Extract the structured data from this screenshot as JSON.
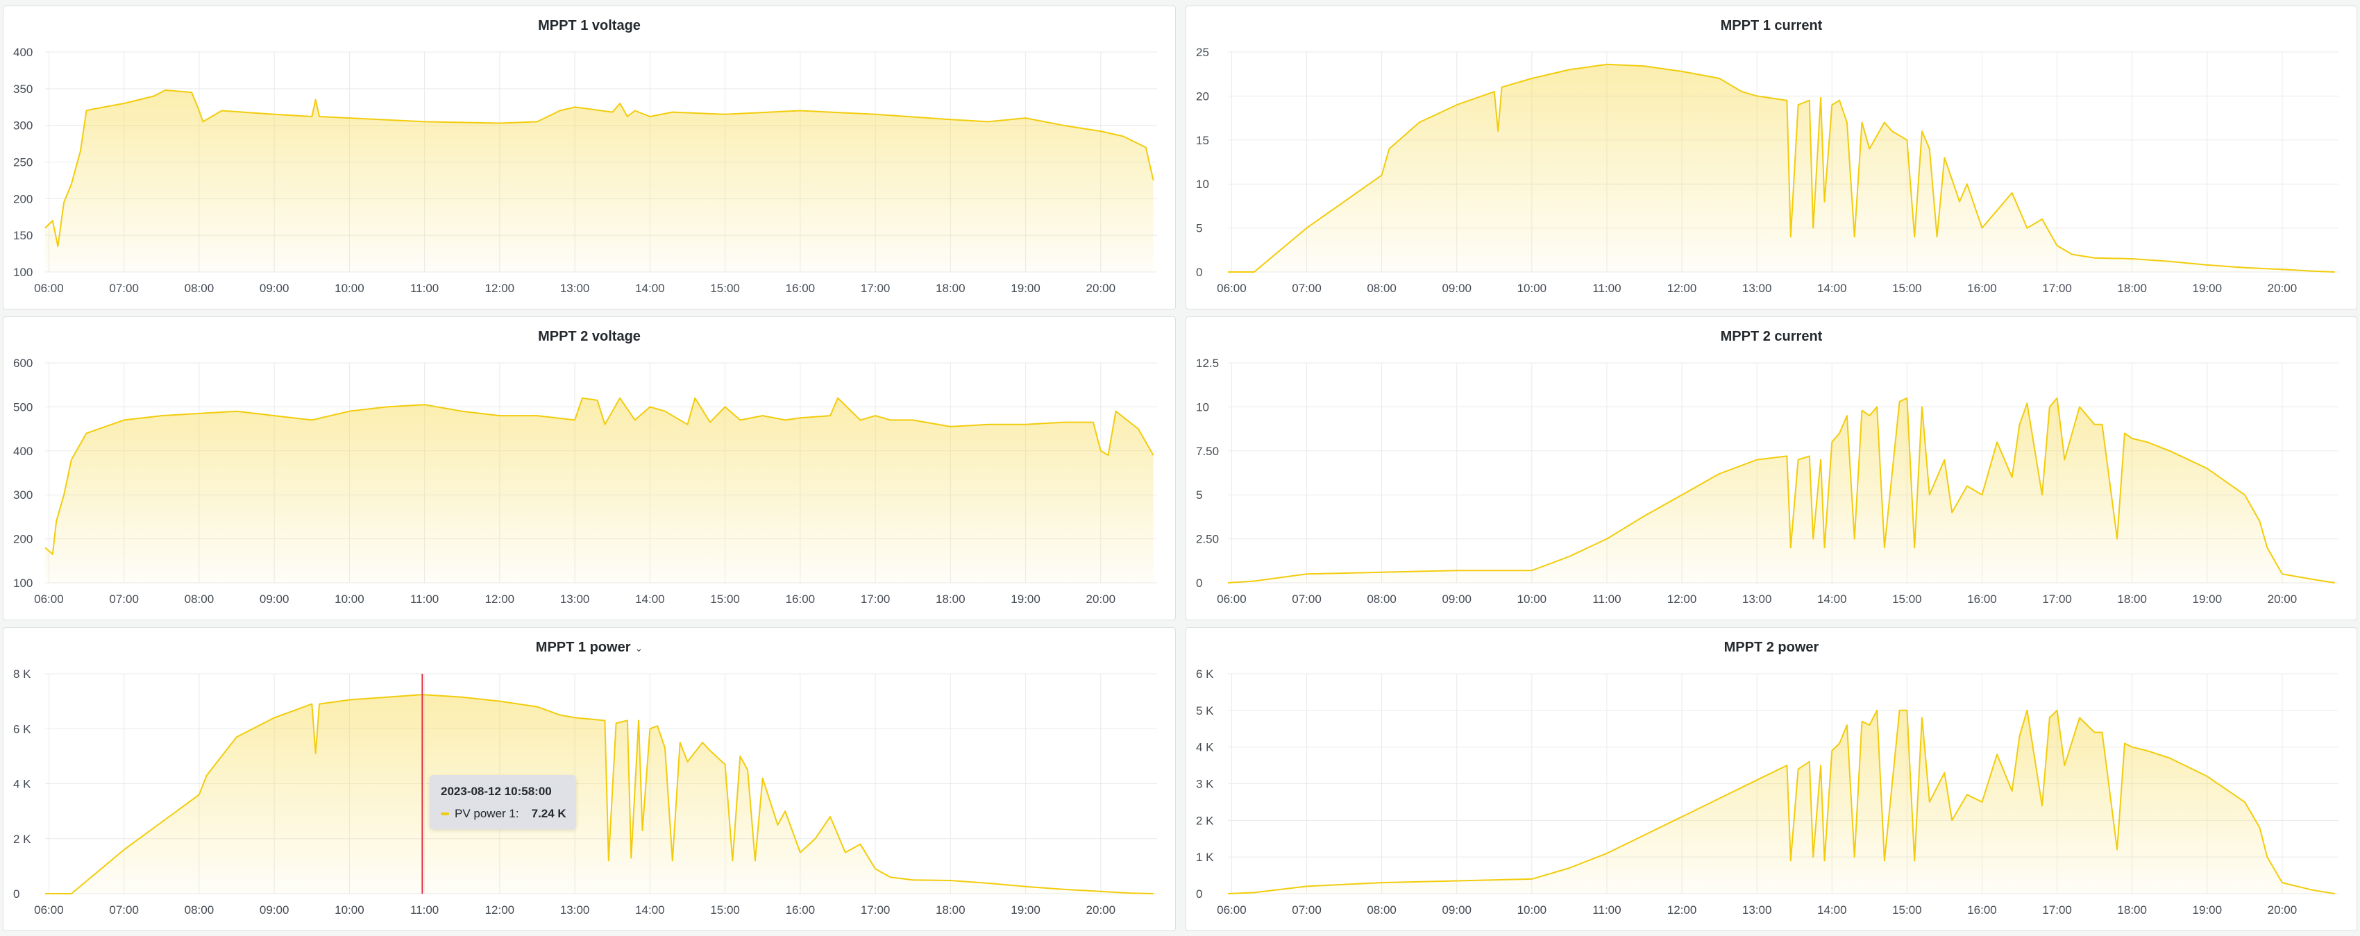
{
  "colors": {
    "series": "#f2cc0c",
    "fill_top": "#f6d94a",
    "cursor": "#e02f44"
  },
  "tooltip": {
    "time": "2023-08-12 10:58:00",
    "series": "PV power 1:",
    "value": "7.24 K"
  },
  "chart_data": [
    {
      "type": "area",
      "title": "MPPT 1 voltage",
      "x_ticks": [
        "06:00",
        "07:00",
        "08:00",
        "09:00",
        "10:00",
        "11:00",
        "12:00",
        "13:00",
        "14:00",
        "15:00",
        "16:00",
        "17:00",
        "18:00",
        "19:00",
        "20:00"
      ],
      "y_ticks": [
        "100",
        "150",
        "200",
        "250",
        "300",
        "350",
        "400"
      ],
      "ylim": [
        100,
        400
      ],
      "xlim_hours": [
        5.95,
        20.75
      ],
      "series": [
        {
          "x": [
            5.95,
            6.05,
            6.12,
            6.2,
            6.3,
            6.42,
            6.5,
            6.58,
            7.0,
            7.4,
            7.55,
            7.9,
            8.0,
            8.05,
            8.3,
            9.0,
            9.5,
            9.55,
            9.6,
            10.0,
            11.0,
            12.0,
            12.5,
            12.8,
            13.0,
            13.5,
            13.6,
            13.7,
            13.8,
            14.0,
            14.3,
            15.0,
            16.0,
            17.0,
            18.0,
            18.5,
            19.0,
            19.5,
            20.0,
            20.3,
            20.6,
            20.7
          ],
          "y": [
            160,
            170,
            135,
            195,
            220,
            265,
            320,
            322,
            330,
            340,
            348,
            345,
            320,
            305,
            320,
            315,
            312,
            335,
            312,
            310,
            305,
            303,
            305,
            320,
            325,
            318,
            330,
            312,
            320,
            312,
            318,
            315,
            320,
            315,
            308,
            305,
            310,
            300,
            292,
            285,
            270,
            225
          ]
        }
      ]
    },
    {
      "type": "area",
      "title": "MPPT 1 current",
      "x_ticks": [
        "06:00",
        "07:00",
        "08:00",
        "09:00",
        "10:00",
        "11:00",
        "12:00",
        "13:00",
        "14:00",
        "15:00",
        "16:00",
        "17:00",
        "18:00",
        "19:00",
        "20:00"
      ],
      "y_ticks": [
        "0",
        "5",
        "10",
        "15",
        "20",
        "25"
      ],
      "ylim": [
        0,
        25
      ],
      "xlim_hours": [
        5.95,
        20.75
      ],
      "series": [
        {
          "x": [
            5.95,
            6.3,
            7.0,
            8.0,
            8.1,
            8.5,
            9.0,
            9.5,
            9.55,
            9.6,
            10.0,
            10.5,
            11.0,
            11.5,
            12.0,
            12.5,
            12.8,
            13.0,
            13.4,
            13.45,
            13.55,
            13.7,
            13.75,
            13.85,
            13.9,
            14.0,
            14.1,
            14.2,
            14.3,
            14.4,
            14.5,
            14.7,
            14.8,
            15.0,
            15.1,
            15.2,
            15.3,
            15.4,
            15.5,
            15.7,
            15.8,
            16.0,
            16.2,
            16.4,
            16.6,
            16.8,
            17.0,
            17.2,
            17.5,
            18.0,
            18.5,
            19.0,
            19.5,
            20.0,
            20.4,
            20.7
          ],
          "y": [
            0,
            0,
            5,
            11,
            14,
            17,
            19,
            20.5,
            16,
            21,
            22,
            23,
            23.6,
            23.4,
            22.8,
            22,
            20.5,
            20,
            19.5,
            4,
            19,
            19.5,
            5,
            19.8,
            8,
            19,
            19.5,
            17,
            4,
            17,
            14,
            17,
            16,
            15,
            4,
            16,
            14,
            4,
            13,
            8,
            10,
            5,
            7,
            9,
            5,
            6,
            3,
            2,
            1.6,
            1.5,
            1.2,
            0.8,
            0.5,
            0.3,
            0.1,
            0
          ]
        }
      ]
    },
    {
      "type": "area",
      "title": "MPPT 2 voltage",
      "x_ticks": [
        "06:00",
        "07:00",
        "08:00",
        "09:00",
        "10:00",
        "11:00",
        "12:00",
        "13:00",
        "14:00",
        "15:00",
        "16:00",
        "17:00",
        "18:00",
        "19:00",
        "20:00"
      ],
      "y_ticks": [
        "100",
        "200",
        "300",
        "400",
        "500",
        "600"
      ],
      "ylim": [
        100,
        600
      ],
      "xlim_hours": [
        5.95,
        20.75
      ],
      "series": [
        {
          "x": [
            5.95,
            6.05,
            6.1,
            6.2,
            6.3,
            6.5,
            7.0,
            7.5,
            8.0,
            8.5,
            9.0,
            9.5,
            10.0,
            10.5,
            11.0,
            11.5,
            12.0,
            12.5,
            13.0,
            13.1,
            13.3,
            13.4,
            13.6,
            13.8,
            14.0,
            14.2,
            14.5,
            14.6,
            14.8,
            15.0,
            15.2,
            15.5,
            15.8,
            16.0,
            16.4,
            16.5,
            16.8,
            17.0,
            17.2,
            17.5,
            18.0,
            18.5,
            19.0,
            19.5,
            19.9,
            20.0,
            20.1,
            20.2,
            20.5,
            20.7
          ],
          "y": [
            180,
            165,
            240,
            300,
            380,
            440,
            470,
            480,
            485,
            490,
            480,
            470,
            490,
            500,
            505,
            490,
            480,
            480,
            470,
            520,
            515,
            460,
            520,
            470,
            500,
            490,
            460,
            520,
            465,
            500,
            470,
            480,
            470,
            475,
            480,
            520,
            470,
            480,
            470,
            470,
            455,
            460,
            460,
            465,
            465,
            400,
            390,
            490,
            450,
            390
          ]
        }
      ]
    },
    {
      "type": "area",
      "title": "MPPT 2 current",
      "x_ticks": [
        "06:00",
        "07:00",
        "08:00",
        "09:00",
        "10:00",
        "11:00",
        "12:00",
        "13:00",
        "14:00",
        "15:00",
        "16:00",
        "17:00",
        "18:00",
        "19:00",
        "20:00"
      ],
      "y_ticks": [
        "0",
        "2.50",
        "5",
        "7.50",
        "10",
        "12.5"
      ],
      "ylim": [
        0,
        12.5
      ],
      "xlim_hours": [
        5.95,
        20.75
      ],
      "series": [
        {
          "x": [
            5.95,
            6.3,
            7.0,
            8.0,
            9.0,
            10.0,
            10.5,
            11.0,
            11.5,
            12.0,
            12.5,
            13.0,
            13.4,
            13.45,
            13.55,
            13.7,
            13.75,
            13.85,
            13.9,
            14.0,
            14.1,
            14.2,
            14.3,
            14.4,
            14.5,
            14.6,
            14.7,
            14.9,
            15.0,
            15.1,
            15.2,
            15.3,
            15.5,
            15.6,
            15.8,
            16.0,
            16.2,
            16.4,
            16.5,
            16.6,
            16.8,
            16.9,
            17.0,
            17.1,
            17.3,
            17.5,
            17.6,
            17.8,
            17.9,
            18.0,
            18.2,
            18.5,
            19.0,
            19.5,
            19.7,
            19.8,
            20.0,
            20.4,
            20.7
          ],
          "y": [
            0,
            0.1,
            0.5,
            0.6,
            0.7,
            0.7,
            1.5,
            2.5,
            3.8,
            5,
            6.2,
            7,
            7.2,
            2,
            7,
            7.2,
            2.5,
            7,
            2,
            8,
            8.5,
            9.5,
            2.5,
            9.8,
            9.5,
            10,
            2,
            10.3,
            10.5,
            2,
            10,
            5,
            7,
            4,
            5.5,
            5,
            8,
            6,
            9,
            10.2,
            5,
            10,
            10.5,
            7,
            10,
            9,
            9,
            2.5,
            8.5,
            8.2,
            8,
            7.5,
            6.5,
            5,
            3.5,
            2,
            0.5,
            0.2,
            0
          ]
        }
      ]
    },
    {
      "type": "area",
      "title": "MPPT 1 power",
      "x_ticks": [
        "06:00",
        "07:00",
        "08:00",
        "09:00",
        "10:00",
        "11:00",
        "12:00",
        "13:00",
        "14:00",
        "15:00",
        "16:00",
        "17:00",
        "18:00",
        "19:00",
        "20:00"
      ],
      "y_ticks": [
        "0",
        "2 K",
        "4 K",
        "6 K",
        "8 K"
      ],
      "ylim": [
        0,
        8000
      ],
      "xlim_hours": [
        5.95,
        20.75
      ],
      "series": [
        {
          "x": [
            5.95,
            6.3,
            7.0,
            8.0,
            8.1,
            8.5,
            9.0,
            9.5,
            9.55,
            9.6,
            10.0,
            10.5,
            10.97,
            11.5,
            12.0,
            12.5,
            12.8,
            13.0,
            13.4,
            13.45,
            13.55,
            13.7,
            13.75,
            13.85,
            13.9,
            14.0,
            14.1,
            14.2,
            14.3,
            14.4,
            14.5,
            14.7,
            14.8,
            15.0,
            15.1,
            15.2,
            15.3,
            15.4,
            15.5,
            15.7,
            15.8,
            16.0,
            16.2,
            16.4,
            16.6,
            16.8,
            17.0,
            17.2,
            17.5,
            18.0,
            18.5,
            19.0,
            19.5,
            20.0,
            20.4,
            20.7
          ],
          "y": [
            0,
            0,
            1600,
            3600,
            4300,
            5700,
            6400,
            6900,
            5100,
            6900,
            7050,
            7150,
            7240,
            7150,
            7000,
            6800,
            6500,
            6400,
            6300,
            1200,
            6200,
            6300,
            1300,
            6300,
            2300,
            6000,
            6100,
            5300,
            1200,
            5500,
            4800,
            5500,
            5200,
            4700,
            1200,
            5000,
            4500,
            1200,
            4200,
            2500,
            3000,
            1500,
            2000,
            2800,
            1500,
            1800,
            900,
            600,
            500,
            480,
            380,
            260,
            160,
            80,
            20,
            0
          ]
        }
      ]
    },
    {
      "type": "area",
      "title": "MPPT 2 power",
      "x_ticks": [
        "06:00",
        "07:00",
        "08:00",
        "09:00",
        "10:00",
        "11:00",
        "12:00",
        "13:00",
        "14:00",
        "15:00",
        "16:00",
        "17:00",
        "18:00",
        "19:00",
        "20:00"
      ],
      "y_ticks": [
        "0",
        "1 K",
        "2 K",
        "3 K",
        "4 K",
        "5 K",
        "6 K"
      ],
      "ylim": [
        0,
        6000
      ],
      "xlim_hours": [
        5.95,
        20.75
      ],
      "series": [
        {
          "x": [
            5.95,
            6.3,
            7.0,
            8.0,
            9.0,
            10.0,
            10.5,
            11.0,
            11.5,
            12.0,
            12.5,
            13.0,
            13.4,
            13.45,
            13.55,
            13.7,
            13.75,
            13.85,
            13.9,
            14.0,
            14.1,
            14.2,
            14.3,
            14.4,
            14.5,
            14.6,
            14.7,
            14.9,
            15.0,
            15.1,
            15.2,
            15.3,
            15.5,
            15.6,
            15.8,
            16.0,
            16.2,
            16.4,
            16.5,
            16.6,
            16.8,
            16.9,
            17.0,
            17.1,
            17.3,
            17.5,
            17.6,
            17.8,
            17.9,
            18.0,
            18.2,
            18.5,
            19.0,
            19.5,
            19.7,
            19.8,
            20.0,
            20.4,
            20.7
          ],
          "y": [
            0,
            30,
            200,
            300,
            350,
            400,
            700,
            1100,
            1600,
            2100,
            2600,
            3100,
            3500,
            900,
            3400,
            3600,
            1000,
            3500,
            900,
            3900,
            4100,
            4600,
            1000,
            4700,
            4600,
            5000,
            900,
            5000,
            5000,
            900,
            4800,
            2500,
            3300,
            2000,
            2700,
            2500,
            3800,
            2800,
            4300,
            5000,
            2400,
            4800,
            5000,
            3500,
            4800,
            4400,
            4400,
            1200,
            4100,
            4000,
            3900,
            3700,
            3200,
            2500,
            1800,
            1000,
            300,
            100,
            0
          ]
        }
      ]
    }
  ]
}
